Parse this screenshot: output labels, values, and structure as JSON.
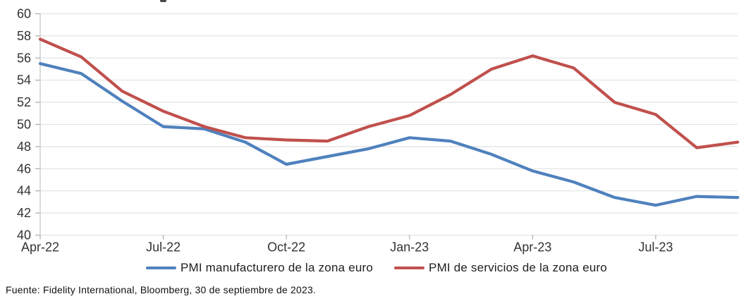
{
  "chart_data": {
    "type": "line",
    "title": "",
    "x_labels": [
      "Apr-22",
      "May-22",
      "Jun-22",
      "Jul-22",
      "Aug-22",
      "Sep-22",
      "Oct-22",
      "Nov-22",
      "Dec-22",
      "Jan-23",
      "Feb-23",
      "Mar-23",
      "Apr-23",
      "May-23",
      "Jun-23",
      "Jul-23",
      "Aug-23",
      "Sep-23"
    ],
    "x_tick_every": 3,
    "x_tick_labels": [
      "Apr-22",
      "Jul-22",
      "Oct-22",
      "Jan-23",
      "Apr-23",
      "Jul-23"
    ],
    "ylim": [
      40,
      60
    ],
    "y_tick_step": 2,
    "y_tick_labels": [
      "40",
      "42",
      "44",
      "46",
      "48",
      "50",
      "52",
      "54",
      "56",
      "58",
      "60"
    ],
    "grid": "horizontal",
    "legend_position": "bottom",
    "series": [
      {
        "name": "PMI manufacturero de la zona euro",
        "color": "#4F81BD",
        "values": [
          55.5,
          54.6,
          52.1,
          49.8,
          49.6,
          48.4,
          46.4,
          47.1,
          47.8,
          48.8,
          48.5,
          47.3,
          45.8,
          44.8,
          43.4,
          42.7,
          43.5,
          43.4
        ]
      },
      {
        "name": "PMI de servicios de la zona euro",
        "color": "#C0504D",
        "values": [
          57.7,
          56.1,
          53.0,
          51.2,
          49.8,
          48.8,
          48.6,
          48.5,
          49.8,
          50.8,
          52.7,
          55.0,
          56.2,
          55.1,
          52.0,
          50.9,
          47.9,
          48.4
        ]
      }
    ],
    "colors": {
      "gridline": "#E2E2E2",
      "axis": "#C4C4C4",
      "tick": "#ABABAB",
      "label_text": "#333333"
    }
  },
  "source_note": "Fuente: Fidelity International, Bloomberg, 30 de septiembre de 2023."
}
